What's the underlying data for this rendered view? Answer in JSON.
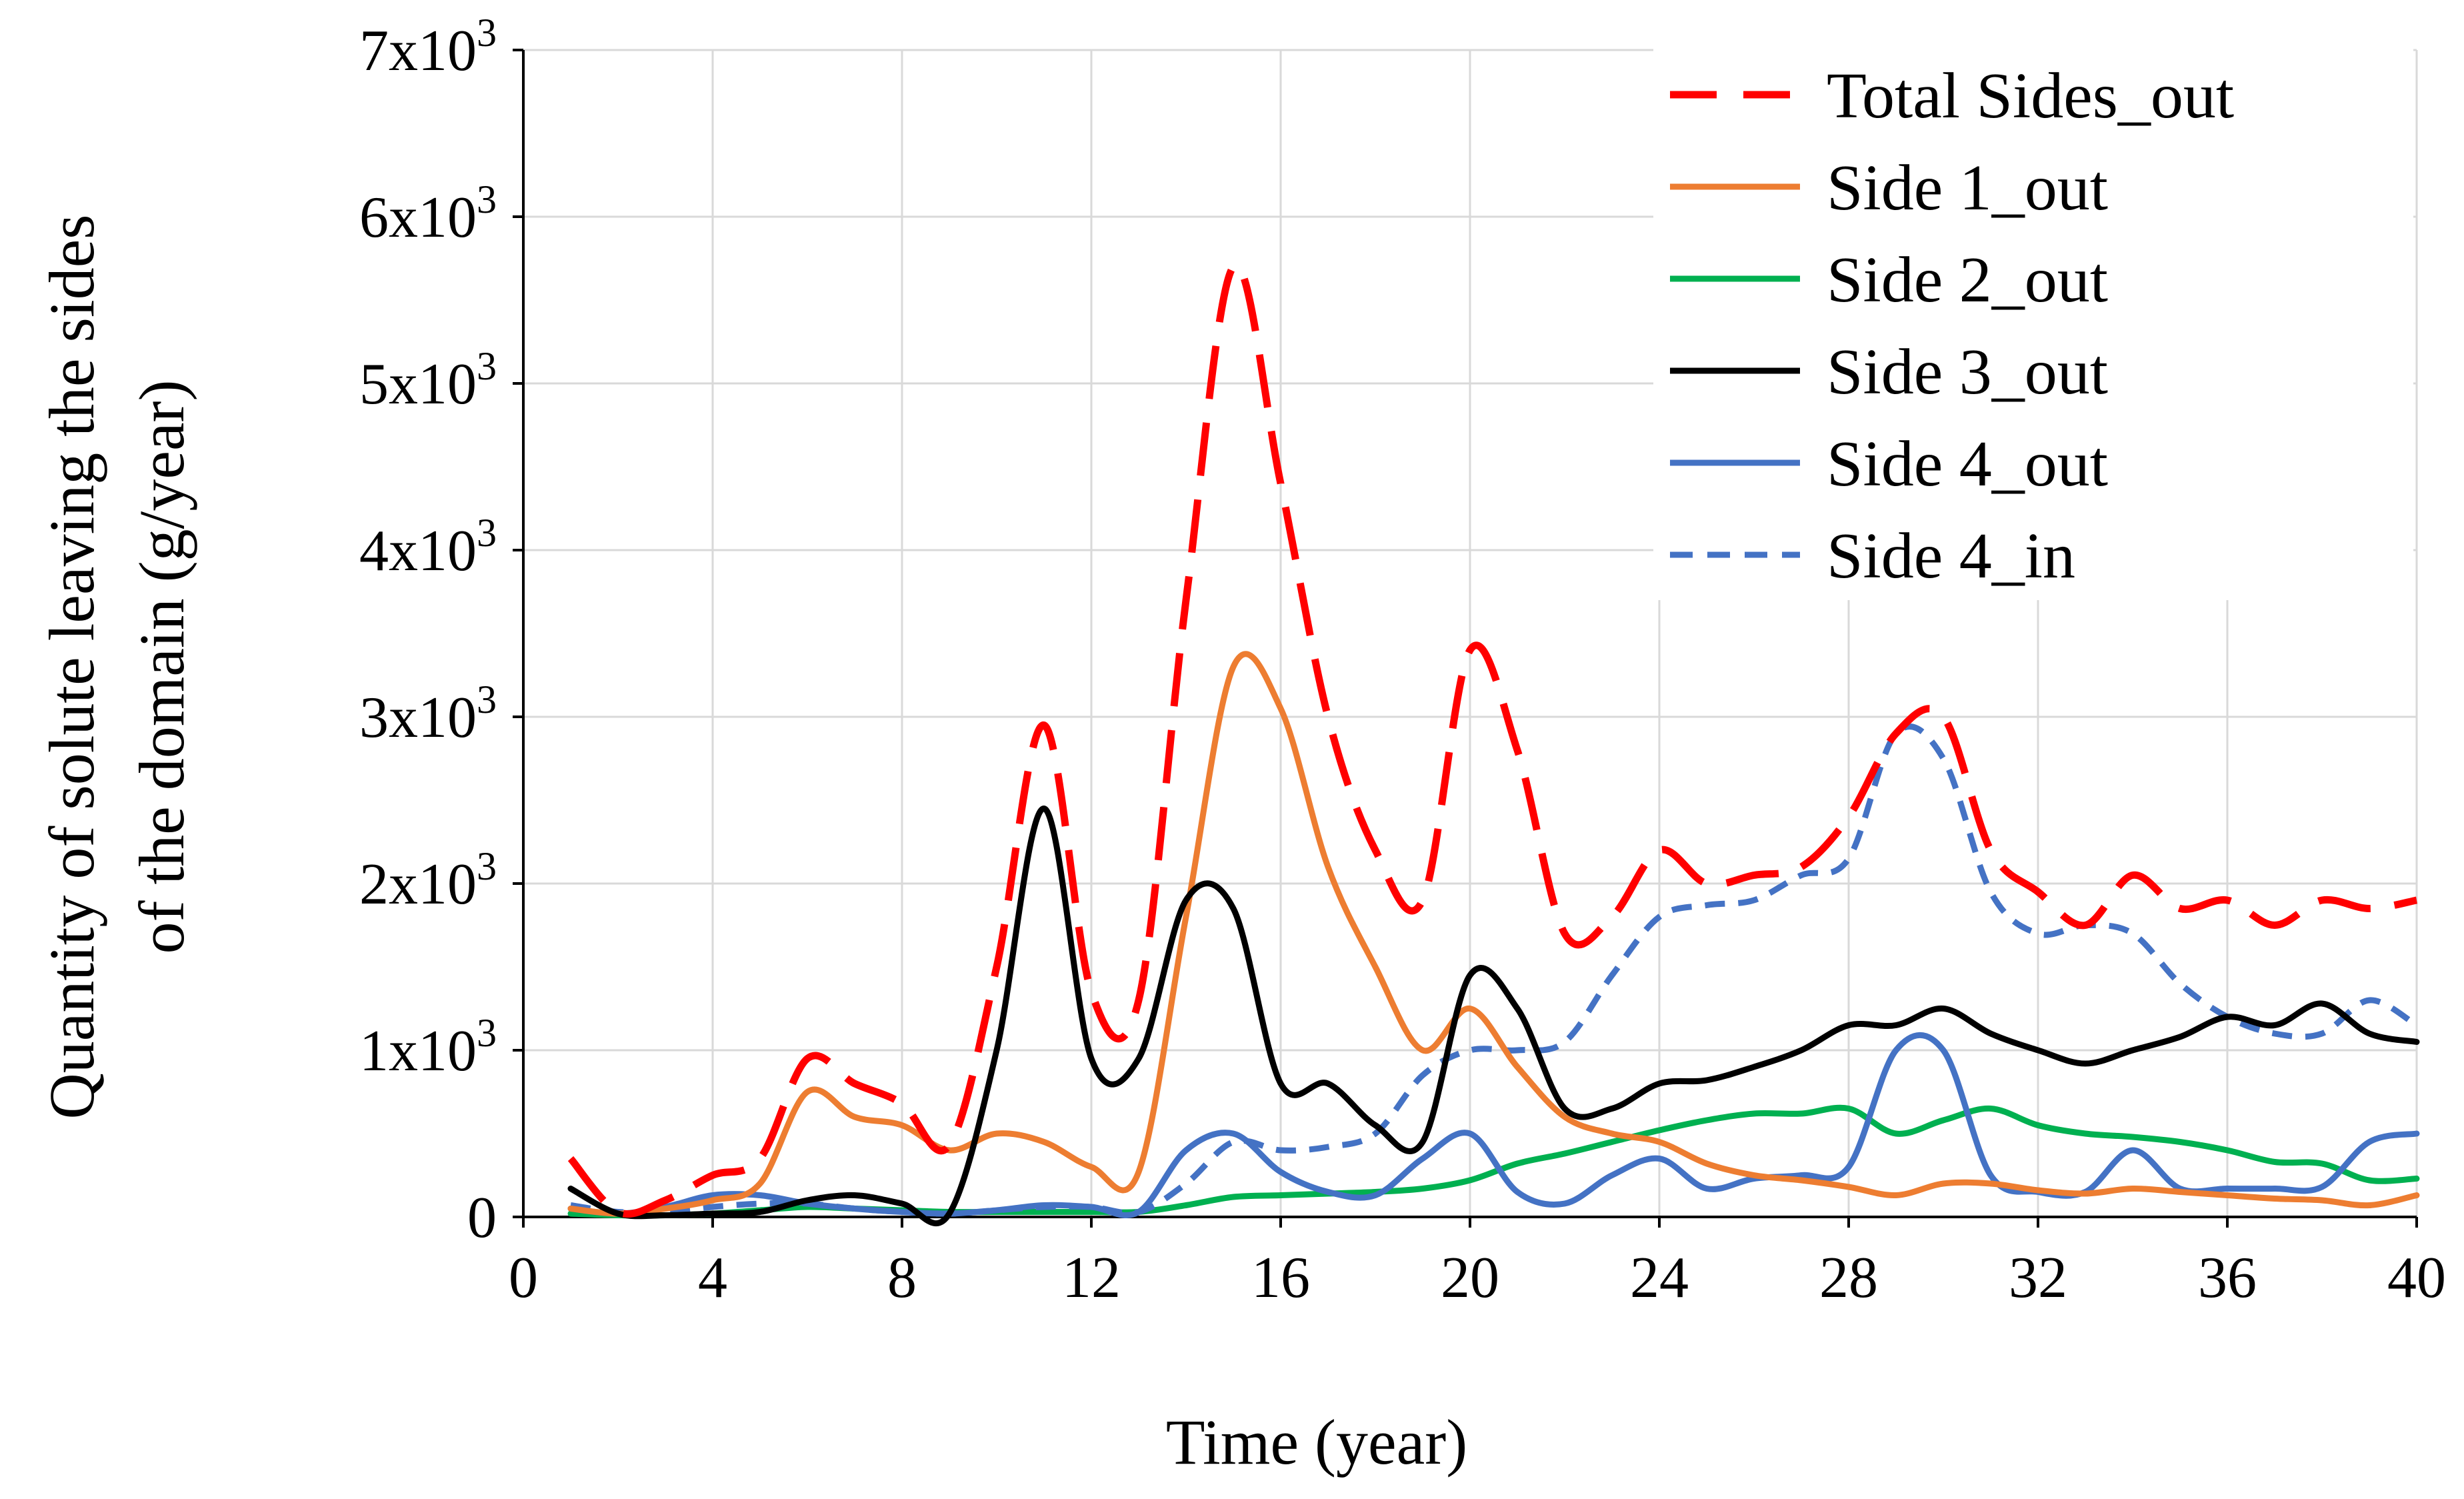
{
  "chart_data": {
    "type": "line",
    "xlabel": "Time (year)",
    "ylabel_lines": [
      "Quantity of solute leaving the sides",
      "of the domain (g/year)"
    ],
    "xlim": [
      0,
      40
    ],
    "ylim": [
      0,
      7000
    ],
    "grid": true,
    "legend_position": "top-right",
    "x_ticks": [
      0,
      4,
      8,
      12,
      16,
      20,
      24,
      28,
      32,
      36,
      40
    ],
    "x_tick_labels": [
      "0",
      "4",
      "8",
      "12",
      "16",
      "20",
      "24",
      "28",
      "32",
      "36",
      "40"
    ],
    "y_ticks": [
      0,
      1000,
      2000,
      3000,
      4000,
      5000,
      6000,
      7000
    ],
    "y_tick_labels": [
      {
        "base": "0",
        "exp": ""
      },
      {
        "base": "1x10",
        "exp": "3"
      },
      {
        "base": "2x10",
        "exp": "3"
      },
      {
        "base": "3x10",
        "exp": "3"
      },
      {
        "base": "4x10",
        "exp": "3"
      },
      {
        "base": "5x10",
        "exp": "3"
      },
      {
        "base": "6x10",
        "exp": "3"
      },
      {
        "base": "7x10",
        "exp": "3"
      }
    ],
    "series": [
      {
        "name": "Total Sides_out",
        "color": "#ff0000",
        "dash": "long",
        "points": [
          [
            1,
            350
          ],
          [
            2,
            30
          ],
          [
            3,
            100
          ],
          [
            4,
            250
          ],
          [
            5,
            350
          ],
          [
            6,
            950
          ],
          [
            7,
            800
          ],
          [
            8,
            680
          ],
          [
            9,
            430
          ],
          [
            10,
            1500
          ],
          [
            11,
            2950
          ],
          [
            12,
            1350
          ],
          [
            13,
            1300
          ],
          [
            14,
            3700
          ],
          [
            15,
            5700
          ],
          [
            16,
            4400
          ],
          [
            17,
            3000
          ],
          [
            18,
            2200
          ],
          [
            19,
            1900
          ],
          [
            20,
            3400
          ],
          [
            21,
            2800
          ],
          [
            22,
            1700
          ],
          [
            23,
            1800
          ],
          [
            24,
            2200
          ],
          [
            25,
            2000
          ],
          [
            26,
            2050
          ],
          [
            27,
            2100
          ],
          [
            28,
            2400
          ],
          [
            29,
            2900
          ],
          [
            30,
            3000
          ],
          [
            31,
            2200
          ],
          [
            32,
            1950
          ],
          [
            33,
            1750
          ],
          [
            34,
            2050
          ],
          [
            35,
            1850
          ],
          [
            36,
            1900
          ],
          [
            37,
            1750
          ],
          [
            38,
            1900
          ],
          [
            39,
            1850
          ],
          [
            40,
            1900
          ]
        ]
      },
      {
        "name": "Side 1_out",
        "color": "#ed7d31",
        "dash": "solid",
        "points": [
          [
            1,
            50
          ],
          [
            2,
            20
          ],
          [
            3,
            50
          ],
          [
            4,
            100
          ],
          [
            5,
            200
          ],
          [
            6,
            750
          ],
          [
            7,
            600
          ],
          [
            8,
            550
          ],
          [
            9,
            400
          ],
          [
            10,
            500
          ],
          [
            11,
            450
          ],
          [
            12,
            300
          ],
          [
            13,
            270
          ],
          [
            14,
            1800
          ],
          [
            15,
            3300
          ],
          [
            16,
            3050
          ],
          [
            17,
            2100
          ],
          [
            18,
            1500
          ],
          [
            19,
            1000
          ],
          [
            20,
            1250
          ],
          [
            21,
            900
          ],
          [
            22,
            600
          ],
          [
            23,
            500
          ],
          [
            24,
            450
          ],
          [
            25,
            320
          ],
          [
            26,
            250
          ],
          [
            27,
            220
          ],
          [
            28,
            180
          ],
          [
            29,
            130
          ],
          [
            30,
            200
          ],
          [
            31,
            200
          ],
          [
            32,
            160
          ],
          [
            33,
            140
          ],
          [
            34,
            170
          ],
          [
            35,
            150
          ],
          [
            36,
            130
          ],
          [
            37,
            110
          ],
          [
            38,
            100
          ],
          [
            39,
            70
          ],
          [
            40,
            130
          ]
        ]
      },
      {
        "name": "Side 2_out",
        "color": "#00b050",
        "dash": "solid",
        "points": [
          [
            1,
            20
          ],
          [
            2,
            10
          ],
          [
            3,
            10
          ],
          [
            4,
            20
          ],
          [
            5,
            40
          ],
          [
            6,
            60
          ],
          [
            7,
            50
          ],
          [
            8,
            40
          ],
          [
            9,
            30
          ],
          [
            10,
            30
          ],
          [
            11,
            30
          ],
          [
            12,
            30
          ],
          [
            13,
            30
          ],
          [
            14,
            70
          ],
          [
            15,
            120
          ],
          [
            16,
            130
          ],
          [
            17,
            140
          ],
          [
            18,
            150
          ],
          [
            19,
            170
          ],
          [
            20,
            220
          ],
          [
            21,
            320
          ],
          [
            22,
            380
          ],
          [
            23,
            450
          ],
          [
            24,
            520
          ],
          [
            25,
            580
          ],
          [
            26,
            620
          ],
          [
            27,
            620
          ],
          [
            28,
            650
          ],
          [
            29,
            500
          ],
          [
            30,
            580
          ],
          [
            31,
            650
          ],
          [
            32,
            550
          ],
          [
            33,
            500
          ],
          [
            34,
            480
          ],
          [
            35,
            450
          ],
          [
            36,
            400
          ],
          [
            37,
            330
          ],
          [
            38,
            320
          ],
          [
            39,
            220
          ],
          [
            40,
            230
          ]
        ]
      },
      {
        "name": "Side 3_out",
        "color": "#000000",
        "dash": "solid",
        "points": [
          [
            1,
            170
          ],
          [
            2,
            20
          ],
          [
            3,
            10
          ],
          [
            4,
            20
          ],
          [
            5,
            30
          ],
          [
            6,
            100
          ],
          [
            7,
            130
          ],
          [
            8,
            80
          ],
          [
            9,
            20
          ],
          [
            10,
            1000
          ],
          [
            11,
            2450
          ],
          [
            12,
            950
          ],
          [
            13,
            950
          ],
          [
            14,
            1900
          ],
          [
            15,
            1850
          ],
          [
            16,
            800
          ],
          [
            17,
            800
          ],
          [
            18,
            550
          ],
          [
            19,
            450
          ],
          [
            20,
            1450
          ],
          [
            21,
            1250
          ],
          [
            22,
            650
          ],
          [
            23,
            650
          ],
          [
            24,
            800
          ],
          [
            25,
            820
          ],
          [
            26,
            900
          ],
          [
            27,
            1000
          ],
          [
            28,
            1150
          ],
          [
            29,
            1150
          ],
          [
            30,
            1250
          ],
          [
            31,
            1100
          ],
          [
            32,
            1000
          ],
          [
            33,
            920
          ],
          [
            34,
            1000
          ],
          [
            35,
            1080
          ],
          [
            36,
            1200
          ],
          [
            37,
            1150
          ],
          [
            38,
            1280
          ],
          [
            39,
            1100
          ],
          [
            40,
            1050
          ]
        ]
      },
      {
        "name": "Side 4_out",
        "color": "#4472c4",
        "dash": "solid",
        "points": [
          [
            1,
            50
          ],
          [
            2,
            20
          ],
          [
            3,
            60
          ],
          [
            4,
            130
          ],
          [
            5,
            130
          ],
          [
            6,
            80
          ],
          [
            7,
            50
          ],
          [
            8,
            30
          ],
          [
            9,
            20
          ],
          [
            10,
            40
          ],
          [
            11,
            70
          ],
          [
            12,
            60
          ],
          [
            13,
            30
          ],
          [
            14,
            400
          ],
          [
            15,
            500
          ],
          [
            16,
            270
          ],
          [
            17,
            150
          ],
          [
            18,
            130
          ],
          [
            19,
            350
          ],
          [
            20,
            500
          ],
          [
            21,
            150
          ],
          [
            22,
            80
          ],
          [
            23,
            250
          ],
          [
            24,
            350
          ],
          [
            25,
            170
          ],
          [
            26,
            230
          ],
          [
            27,
            250
          ],
          [
            28,
            300
          ],
          [
            29,
            1000
          ],
          [
            30,
            1000
          ],
          [
            31,
            250
          ],
          [
            32,
            150
          ],
          [
            33,
            150
          ],
          [
            34,
            400
          ],
          [
            35,
            170
          ],
          [
            36,
            170
          ],
          [
            37,
            170
          ],
          [
            38,
            180
          ],
          [
            39,
            450
          ],
          [
            40,
            500
          ]
        ]
      },
      {
        "name": "Side 4_in",
        "color": "#4472c4",
        "dash": "short",
        "points": [
          [
            1,
            70
          ],
          [
            2,
            30
          ],
          [
            3,
            30
          ],
          [
            4,
            60
          ],
          [
            5,
            80
          ],
          [
            6,
            80
          ],
          [
            7,
            50
          ],
          [
            8,
            30
          ],
          [
            9,
            20
          ],
          [
            10,
            40
          ],
          [
            11,
            60
          ],
          [
            12,
            60
          ],
          [
            13,
            30
          ],
          [
            14,
            200
          ],
          [
            15,
            450
          ],
          [
            16,
            400
          ],
          [
            17,
            420
          ],
          [
            18,
            500
          ],
          [
            19,
            850
          ],
          [
            20,
            1000
          ],
          [
            21,
            1000
          ],
          [
            22,
            1050
          ],
          [
            23,
            1450
          ],
          [
            24,
            1800
          ],
          [
            25,
            1870
          ],
          [
            26,
            1900
          ],
          [
            27,
            2050
          ],
          [
            28,
            2150
          ],
          [
            29,
            2900
          ],
          [
            30,
            2750
          ],
          [
            31,
            1950
          ],
          [
            32,
            1700
          ],
          [
            33,
            1750
          ],
          [
            34,
            1700
          ],
          [
            35,
            1400
          ],
          [
            36,
            1200
          ],
          [
            37,
            1100
          ],
          [
            38,
            1100
          ],
          [
            39,
            1300
          ],
          [
            40,
            1150
          ]
        ]
      }
    ]
  }
}
